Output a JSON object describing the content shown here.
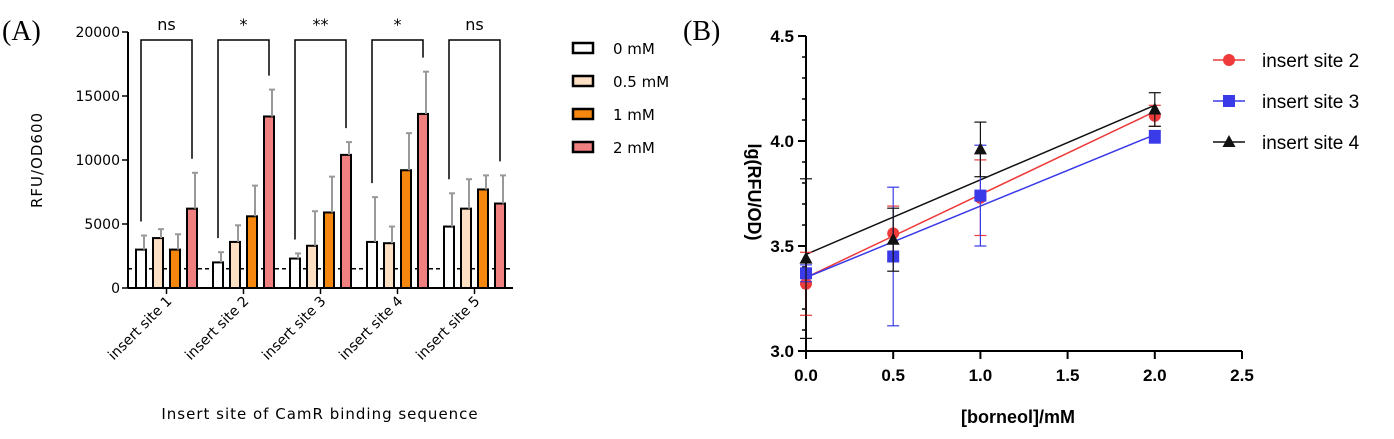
{
  "chart_data": [
    {
      "type": "bar",
      "panel_label": "(A)",
      "title": "",
      "xlabel": "Insert site of CamR binding sequence",
      "ylabel": "RFU/OD600",
      "ylim": [
        0,
        20000
      ],
      "yticks": [
        "0",
        "5000",
        "10000",
        "15000",
        "20000"
      ],
      "categories": [
        "insert site 1",
        "insert site 2",
        "insert site 3",
        "insert site 4",
        "insert site 5"
      ],
      "series": [
        {
          "name": "0 mM",
          "color": "#ffffff",
          "values": [
            3000,
            2000,
            2300,
            3600,
            4800
          ],
          "errors": [
            1100,
            800,
            400,
            3500,
            2600
          ]
        },
        {
          "name": "0.5 mM",
          "color": "#fde0c4",
          "values": [
            3900,
            3600,
            3300,
            3500,
            6200
          ],
          "errors": [
            700,
            1300,
            2700,
            1300,
            2300
          ]
        },
        {
          "name": "1 mM",
          "color": "#f5870f",
          "values": [
            3000,
            5600,
            5900,
            9200,
            7700
          ],
          "errors": [
            1200,
            2400,
            2800,
            2900,
            1100
          ]
        },
        {
          "name": "2 mM",
          "color": "#f08080",
          "values": [
            6200,
            13400,
            10400,
            13600,
            6600
          ],
          "errors": [
            2800,
            2100,
            1000,
            3300,
            2200
          ]
        }
      ],
      "baseline": 1500,
      "significance": [
        "ns",
        "*",
        "**",
        "*",
        "ns"
      ],
      "legend_position": "right"
    },
    {
      "type": "scatter",
      "panel_label": "(B)",
      "title": "",
      "xlabel": "[borneol]/mM",
      "ylabel": "lg(RFU/OD)",
      "xlim": [
        0,
        2.5
      ],
      "ylim": [
        3.0,
        4.5
      ],
      "xticks": [
        "0.0",
        "0.5",
        "1.0",
        "1.5",
        "2.0",
        "2.5"
      ],
      "yticks": [
        "3.0",
        "3.5",
        "4.0",
        "4.5"
      ],
      "x": [
        0,
        0.5,
        1.0,
        2.0
      ],
      "series": [
        {
          "name": "insert site 2",
          "color": "#ee3a3a",
          "marker": "circle",
          "values": [
            3.32,
            3.56,
            3.73,
            4.12
          ],
          "errors": [
            0.15,
            0.13,
            0.18,
            0.05
          ],
          "fit": {
            "intercept": 3.35,
            "slope": 0.395
          }
        },
        {
          "name": "insert site 3",
          "color": "#3a3ae8",
          "marker": "square",
          "values": [
            3.37,
            3.45,
            3.74,
            4.02
          ],
          "errors": [
            0.04,
            0.33,
            0.24,
            0.03
          ],
          "fit": {
            "intercept": 3.35,
            "slope": 0.34
          }
        },
        {
          "name": "insert site 4",
          "color": "#111111",
          "marker": "triangle",
          "values": [
            3.44,
            3.53,
            3.96,
            4.15
          ],
          "errors": [
            0.38,
            0.15,
            0.13,
            0.08
          ],
          "fit": {
            "intercept": 3.46,
            "slope": 0.355
          }
        }
      ],
      "legend_position": "right"
    }
  ]
}
